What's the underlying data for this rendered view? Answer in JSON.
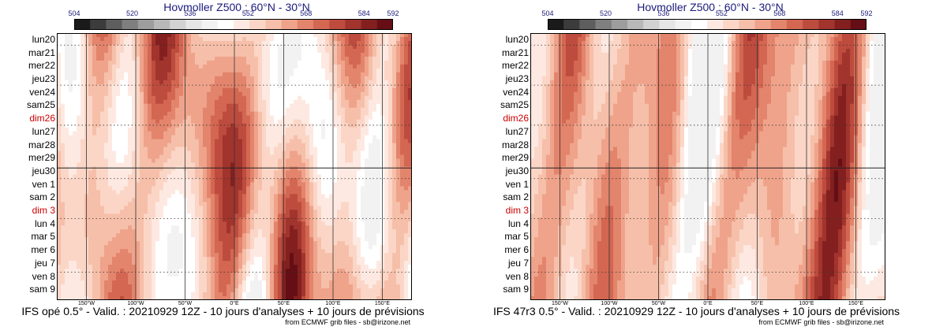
{
  "colorbar": {
    "tick_labels": [
      "504",
      "520",
      "536",
      "552",
      "568",
      "584",
      "592"
    ],
    "colors": [
      "#1a1a1a",
      "#3c3c3c",
      "#5e5e5e",
      "#7f7f7f",
      "#9d9d9d",
      "#b8b8b8",
      "#d2d2d2",
      "#e6e6e6",
      "#f2f2f2",
      "#ffffff",
      "#fde9e1",
      "#fbd6c7",
      "#f6bfa9",
      "#efa38b",
      "#e3846c",
      "#d36752",
      "#bd4c3e",
      "#a1342d",
      "#83201f",
      "#650e15"
    ]
  },
  "panels": [
    {
      "title": "Hovmoller Z500 : 60°N - 30°N",
      "footer": "IFS opé 0.5° - Valid. : 20210929 12Z - 10 jours d'analyses + 10 jours de prévisions",
      "credit": "from ECMWF grib files - sb@irizone.net",
      "chart_data": {
        "type": "heatmap",
        "title": "Hovmoller Z500 : 60°N - 30°N",
        "x_tick_labels": [
          "150°W",
          "100°W",
          "50°W",
          "0°E",
          "50°E",
          "100°E",
          "150°E"
        ],
        "y_labels": [
          "lun20",
          "mar21",
          "mer22",
          "jeu23",
          "ven24",
          "sam25",
          "dim26",
          "lun27",
          "mar28",
          "mer29",
          "jeu30",
          "ven 1",
          "sam 2",
          "dim 3",
          "lun 4",
          "mar 5",
          "mer 6",
          "jeu 7",
          "ven 8",
          "sam 9"
        ],
        "highlighted_y_labels": [
          "dim26",
          "dim 3"
        ],
        "value_range": [
          504,
          592
        ],
        "colorbar_ticks": [
          504,
          520,
          536,
          552,
          568,
          584,
          592
        ],
        "analysis_forecast_boundary": "jeu30",
        "seed": 1
      }
    },
    {
      "title": "Hovmoller Z500 : 60°N - 30°N",
      "footer": "IFS 47r3 0.5° - Valid. : 20210929 12Z - 10 jours d'analyses + 10 jours de prévisions",
      "credit": "from ECMWF grib files - sb@irizone.net",
      "chart_data": {
        "type": "heatmap",
        "title": "Hovmoller Z500 : 60°N - 30°N",
        "x_tick_labels": [
          "150°W",
          "100°W",
          "50°W",
          "0°E",
          "50°E",
          "100°E",
          "150°E"
        ],
        "y_labels": [
          "lun20",
          "mar21",
          "mer22",
          "jeu23",
          "ven24",
          "sam25",
          "dim26",
          "lun27",
          "mar28",
          "mer29",
          "jeu30",
          "ven 1",
          "sam 2",
          "dim 3",
          "lun 4",
          "mar 5",
          "mer 6",
          "jeu 7",
          "ven 8",
          "sam 9"
        ],
        "highlighted_y_labels": [
          "dim26",
          "dim 3"
        ],
        "value_range": [
          504,
          592
        ],
        "colorbar_ticks": [
          504,
          520,
          536,
          552,
          568,
          584,
          592
        ],
        "analysis_forecast_boundary": "jeu30",
        "seed": 2
      }
    }
  ]
}
